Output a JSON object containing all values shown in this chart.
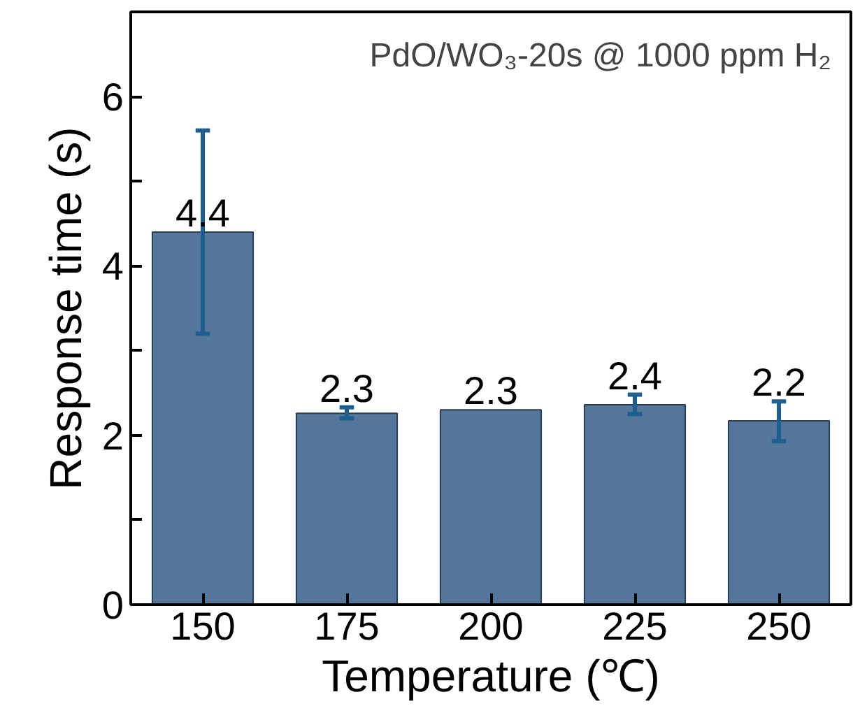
{
  "chart_data": {
    "type": "bar",
    "xlabel": "Temperature (℃)",
    "ylabel": "Response time (s)",
    "annotations": [
      "PdO/WO₃-20s @ 1000 ppm H₂"
    ],
    "categories": [
      "150",
      "175",
      "200",
      "225",
      "250"
    ],
    "values": [
      4.4,
      2.26,
      2.3,
      2.36,
      2.17
    ],
    "errors": [
      [
        3.2,
        5.6
      ],
      [
        2.2,
        2.33
      ],
      null,
      [
        2.25,
        2.48
      ],
      [
        1.93,
        2.4
      ]
    ],
    "value_labels": [
      "4.4",
      "2.3",
      "2.3",
      "2.4",
      "2.2"
    ],
    "color": "#53769a",
    "ylim": [
      0,
      7
    ],
    "yticks": [
      0,
      {
        "value": 1,
        "label": null
      },
      2,
      {
        "value": 3,
        "label": null
      },
      4,
      {
        "value": 5,
        "label": null
      },
      6
    ],
    "grid": false
  }
}
